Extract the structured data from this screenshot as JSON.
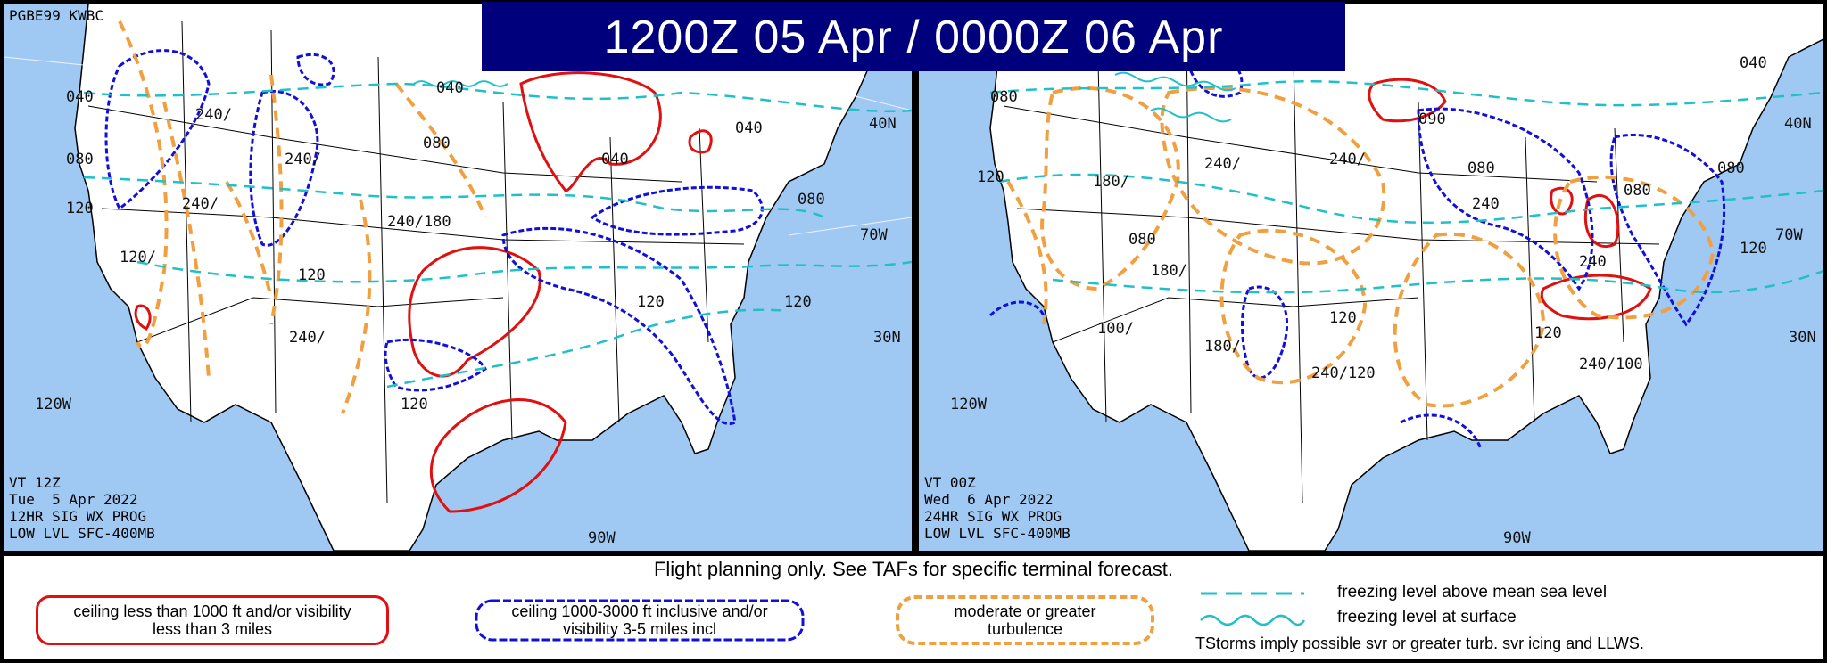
{
  "title": "1200Z 05 Apr  /  0000Z 06 Apr",
  "left_map": {
    "product_id": "PGBE99 KWBC",
    "valid_lines": [
      "VT 12Z",
      "Tue  5 Apr 2022",
      "12HR SIG WX PROG",
      "LOW LVL SFC-400MB"
    ],
    "freezing_labels": [
      "040",
      "080",
      "120",
      "040",
      "080",
      "040",
      "040",
      "080",
      "120",
      "120",
      "120",
      "120"
    ],
    "turbulence_labels": [
      "240/",
      "240/",
      "240/",
      "120/",
      "240/180",
      "240/"
    ],
    "grid_labels": [
      "40N",
      "70W",
      "30N",
      "120W",
      "90W"
    ]
  },
  "right_map": {
    "valid_lines": [
      "VT 00Z",
      "Wed  6 Apr 2022",
      "24HR SIG WX PROG",
      "LOW LVL SFC-400MB"
    ],
    "freezing_labels": [
      "040",
      "080",
      "120",
      "090",
      "080",
      "080",
      "080",
      "120",
      "120",
      "120",
      "080"
    ],
    "turbulence_labels": [
      "240/",
      "180/",
      "240/",
      "240",
      "180/",
      "100/",
      "180/",
      "240/120",
      "240",
      "240/100"
    ],
    "grid_labels": [
      "40N",
      "70W",
      "30N",
      "120W",
      "90W"
    ]
  },
  "legend": {
    "note": "Flight planning only. See TAFs for specific terminal forecast.",
    "red_box": "ceiling less than 1000 ft and/or visibility less than 3 miles",
    "blue_box": "ceiling 1000-3000 ft inclusive and/or visibility 3-5 miles incl",
    "orange_box": "moderate or greater turbulence",
    "freezing_msl": "freezing level above mean sea level",
    "freezing_surface": "freezing level at surface",
    "tstorms": "TStorms imply possible svr or greater turb. svr icing and LLWS."
  },
  "colors": {
    "ocean": "#9fc9f3",
    "land": "#ffffff",
    "ifr": "#e01010",
    "mvfr": "#1010d8",
    "turbulence": "#f0a040",
    "freezing": "#20c0c8",
    "title_bg": "#00007c"
  }
}
